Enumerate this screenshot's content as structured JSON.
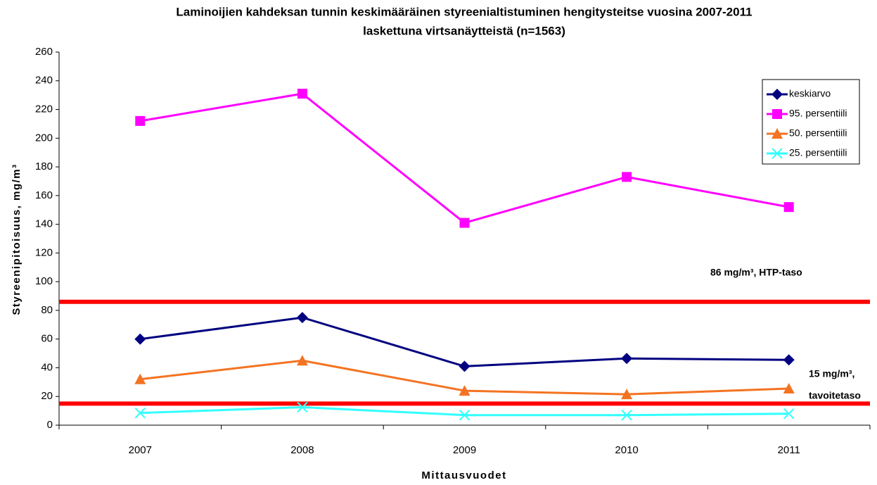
{
  "chart_data": {
    "type": "line",
    "title": [
      "Laminoijien kahdeksan tunnin keskimääräinen styreenialtistuminen hengitysteitse vuosina 2007-2011",
      "laskettuna virtsanäytteistä (n=1563)"
    ],
    "x_label": "Mittausvuodet",
    "y_label": "Styreenipitoisuus, mg/m³",
    "categories": [
      "2007",
      "2008",
      "2009",
      "2010",
      "2011"
    ],
    "series": [
      {
        "name": "keskiarvo",
        "color": "#000080",
        "marker": "diamond",
        "values": [
          60,
          75,
          41,
          46.5,
          45.5
        ]
      },
      {
        "name": "95. persentiili",
        "color": "#ff00ff",
        "marker": "square",
        "values": [
          212,
          231,
          141,
          173,
          152
        ]
      },
      {
        "name": "50. persentiili",
        "color": "#f47321",
        "marker": "triangle",
        "values": [
          32,
          45,
          24,
          21.5,
          25.5
        ]
      },
      {
        "name": "25. persentiili",
        "color": "#33ffff",
        "marker": "x",
        "values": [
          8.5,
          12.5,
          7,
          7,
          8
        ]
      }
    ],
    "reference_lines": [
      {
        "value": 86,
        "label": [
          "86 mg/m³, HTP-taso"
        ],
        "color": "#ff0000"
      },
      {
        "value": 15,
        "label": [
          "15 mg/m³,",
          "tavoitetaso"
        ],
        "color": "#ff0000"
      }
    ],
    "ylim": [
      0,
      260
    ],
    "yticks": [
      0,
      20,
      40,
      60,
      80,
      100,
      120,
      140,
      160,
      180,
      200,
      220,
      240,
      260
    ],
    "legend": "upper right"
  }
}
